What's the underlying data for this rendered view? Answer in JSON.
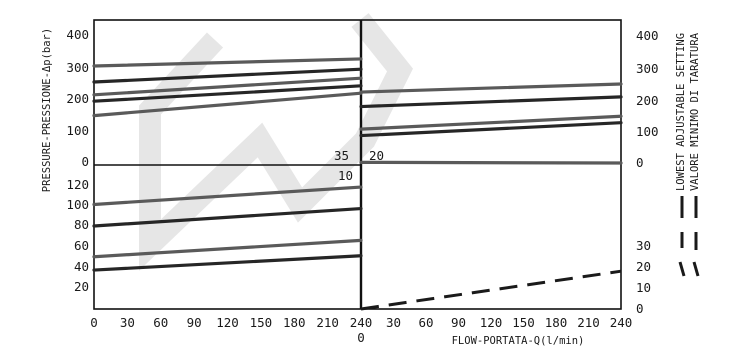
{
  "chart_data": {
    "type": "line",
    "xlabel": "FLOW-PORTATA-Q(l/min)",
    "ylabel": "PRESSURE-PRESSIONE-Δp(bar)",
    "legend": {
      "label_line1": "LOWEST ADJUSTABLE SETTING",
      "label_line2": "VALORE MINIMO DI TARATURA",
      "placement": "right"
    },
    "left_panel": {
      "xlim": [
        0,
        240
      ],
      "xticks": [
        "0",
        "30",
        "60",
        "90",
        "120",
        "150",
        "180",
        "210",
        "240"
      ],
      "upper": {
        "ylim": [
          0,
          400
        ],
        "yticks": [
          "400",
          "300",
          "200",
          "100",
          "0"
        ],
        "label": "35",
        "series": [
          {
            "x": [
              0,
              240
            ],
            "values": [
              300,
              322
            ]
          },
          {
            "x": [
              0,
              240
            ],
            "values": [
              250,
              290
            ]
          },
          {
            "x": [
              0,
              240
            ],
            "values": [
              210,
              262
            ]
          },
          {
            "x": [
              0,
              240
            ],
            "values": [
              190,
              238
            ]
          },
          {
            "x": [
              0,
              240
            ],
            "values": [
              145,
              215
            ]
          }
        ]
      },
      "lower": {
        "ylim": [
          0,
          120
        ],
        "yticks": [
          "120",
          "100",
          "80",
          "60",
          "40",
          "20"
        ],
        "label": "10",
        "series": [
          {
            "x": [
              0,
              240
            ],
            "values": [
              101,
              118
            ]
          },
          {
            "x": [
              0,
              240
            ],
            "values": [
              80,
              97
            ]
          },
          {
            "x": [
              0,
              240
            ],
            "values": [
              50,
              66
            ]
          },
          {
            "x": [
              0,
              240
            ],
            "values": [
              37,
              51
            ]
          }
        ]
      }
    },
    "right_panel": {
      "xlim": [
        0,
        240
      ],
      "xticks": [
        "0",
        "30",
        "60",
        "90",
        "120",
        "150",
        "180",
        "210",
        "240"
      ],
      "upper": {
        "ylim": [
          0,
          400
        ],
        "yticks": [
          "400",
          "300",
          "200",
          "100",
          "0"
        ],
        "label": "20",
        "series": [
          {
            "x": [
              0,
              240
            ],
            "values": [
              220,
              245
            ]
          },
          {
            "x": [
              0,
              240
            ],
            "values": [
              175,
              205
            ]
          },
          {
            "x": [
              0,
              240
            ],
            "values": [
              105,
              145
            ]
          },
          {
            "x": [
              0,
              240
            ],
            "values": [
              85,
              125
            ]
          },
          {
            "x": [
              0,
              240
            ],
            "values": [
              2,
              0
            ]
          }
        ]
      },
      "lower": {
        "ylim": [
          0,
          40
        ],
        "yticks": [
          "30",
          "20",
          "10",
          "0"
        ],
        "dashed_series": {
          "x": [
            0,
            240
          ],
          "values": [
            0,
            18
          ]
        }
      }
    },
    "grid": false
  }
}
